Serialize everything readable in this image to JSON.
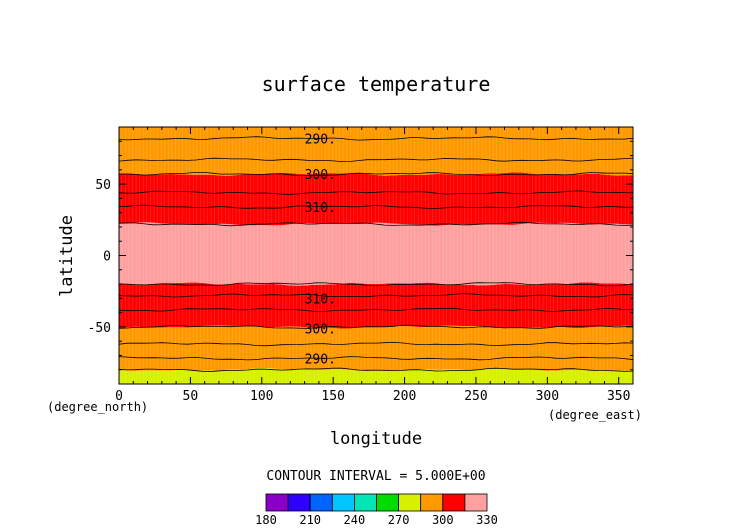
{
  "chart_data": {
    "type": "heatmap",
    "title": "surface temperature",
    "xlabel": "longitude",
    "ylabel": "latitude",
    "x_unit": "(degree_east)",
    "y_unit": "(degree_north)",
    "xlim": [
      0,
      360
    ],
    "ylim": [
      -90,
      90
    ],
    "x_ticks": [
      0,
      50,
      100,
      150,
      200,
      250,
      300,
      350
    ],
    "y_ticks": [
      -50,
      0,
      50
    ],
    "contour_interval_text": "CONTOUR INTERVAL = 5.000E+00",
    "contour_labels": [
      {
        "text": "290.",
        "lon": 130,
        "lat": 82
      },
      {
        "text": "300.",
        "lon": 130,
        "lat": 57
      },
      {
        "text": "310.",
        "lon": 130,
        "lat": 34
      },
      {
        "text": "310.",
        "lon": 130,
        "lat": -30
      },
      {
        "text": "300.",
        "lon": 130,
        "lat": -51
      },
      {
        "text": "290.",
        "lon": 130,
        "lat": -72
      }
    ],
    "bands": [
      {
        "min": 280,
        "max": 290,
        "color": "#d7f000",
        "lat_north": -80,
        "lat_south": -90
      },
      {
        "min": 290,
        "max": 300,
        "color": "#ff9900",
        "lat_north": -50,
        "lat_south": -80
      },
      {
        "min": 300,
        "max": 310,
        "color": "#ff0000",
        "lat_north": -20,
        "lat_south": -50
      },
      {
        "min": 310,
        "max": 330,
        "color": "#ffa0a0",
        "lat_north": 22,
        "lat_south": -20
      },
      {
        "min": 300,
        "max": 310,
        "color": "#ff0000",
        "lat_north": 57,
        "lat_south": 22
      },
      {
        "min": 290,
        "max": 300,
        "color": "#ff9900",
        "lat_north": 90,
        "lat_south": 57
      }
    ],
    "contours_lat": [
      82,
      67,
      57,
      44,
      34,
      22,
      -20,
      -28,
      -38,
      -50,
      -62,
      -72,
      -80
    ],
    "colorbar": {
      "tick_labels": [
        "180",
        "210",
        "240",
        "270",
        "300",
        "330"
      ],
      "colors": [
        "#8a00c8",
        "#3000ff",
        "#0064ff",
        "#00c8ff",
        "#00e6b4",
        "#00dc00",
        "#d7f000",
        "#ff9900",
        "#ff0000",
        "#ffa0a0"
      ]
    }
  }
}
